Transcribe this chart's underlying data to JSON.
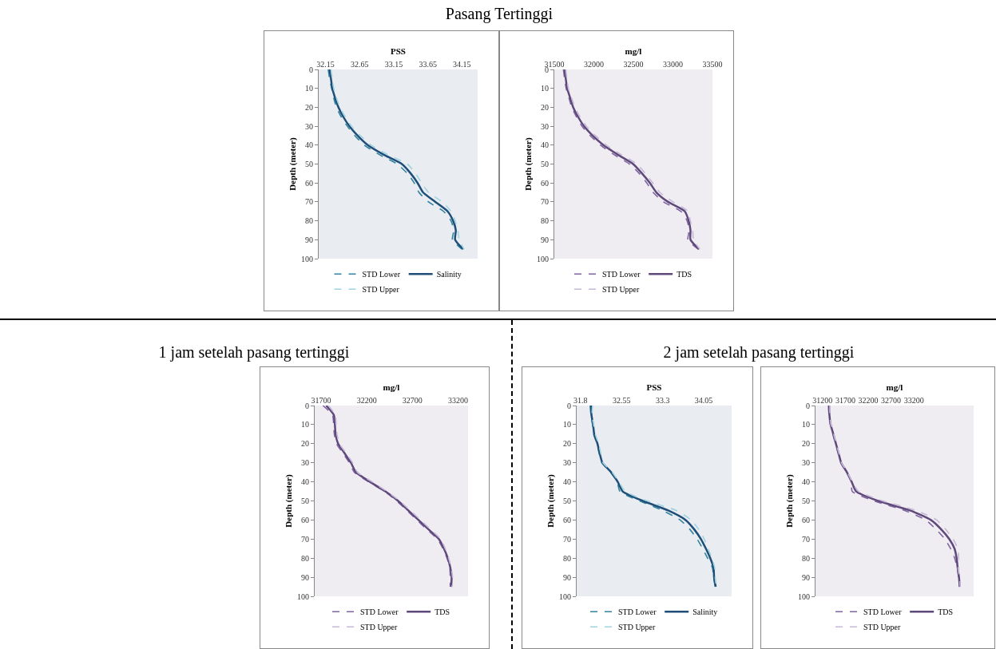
{
  "chart_data": [
    {
      "type": "line",
      "title": "Pasang Tertinggi",
      "xlabel": "PSS",
      "ylabel": "Depth (meter)",
      "xlim": [
        32.05,
        34.38
      ],
      "xticks": [
        32.15,
        32.65,
        33.15,
        33.65,
        34.15
      ],
      "ylim": [
        100,
        0
      ],
      "yticks": [
        0,
        10,
        20,
        30,
        40,
        50,
        60,
        70,
        80,
        90,
        100
      ],
      "grid": false,
      "legend": "bottom",
      "series": [
        {
          "name": "STD Lower",
          "color": "#31849b",
          "line_style": "dashed",
          "x": [
            32.19,
            32.21,
            32.24,
            32.27,
            32.31,
            32.38,
            32.47,
            32.58,
            32.72,
            32.94,
            33.2,
            33.35,
            33.45,
            33.52,
            33.66,
            33.88,
            33.99,
            34.03,
            34.01,
            34.15
          ],
          "values": [
            0,
            5,
            10,
            15,
            20,
            25,
            30,
            35,
            40,
            45,
            50,
            55,
            60,
            65,
            70,
            75,
            80,
            85,
            90,
            95
          ]
        },
        {
          "name": "Salinity",
          "color": "#1f4e79",
          "line_style": "solid",
          "x": [
            32.21,
            32.23,
            32.25,
            32.29,
            32.34,
            32.41,
            32.5,
            32.62,
            32.77,
            33.0,
            33.27,
            33.4,
            33.5,
            33.58,
            33.76,
            33.94,
            34.02,
            34.06,
            34.05,
            34.17
          ],
          "values": [
            0,
            5,
            10,
            15,
            20,
            25,
            30,
            35,
            40,
            45,
            50,
            55,
            60,
            65,
            70,
            75,
            80,
            85,
            90,
            95
          ]
        },
        {
          "name": "STD Upper",
          "color": "#9fd3e0",
          "line_style": "dashed",
          "x": [
            32.23,
            32.25,
            32.27,
            32.31,
            32.36,
            32.44,
            32.53,
            32.66,
            32.82,
            33.06,
            33.35,
            33.47,
            33.56,
            33.66,
            33.86,
            33.99,
            34.05,
            34.09,
            34.11,
            34.18
          ],
          "values": [
            0,
            5,
            10,
            15,
            20,
            25,
            30,
            35,
            40,
            45,
            50,
            55,
            60,
            65,
            70,
            75,
            80,
            85,
            90,
            95
          ]
        }
      ]
    },
    {
      "type": "line",
      "xlabel": "mg/l",
      "ylabel": "Depth (meter)",
      "xlim": [
        31500,
        33500
      ],
      "xticks": [
        31500,
        32000,
        32500,
        33000,
        33500
      ],
      "ylim": [
        100,
        0
      ],
      "yticks": [
        0,
        10,
        20,
        30,
        40,
        50,
        60,
        70,
        80,
        90,
        100
      ],
      "grid": false,
      "legend": "bottom",
      "series": [
        {
          "name": "STD Lower",
          "color": "#8064a2",
          "line_style": "dashed",
          "x": [
            31615,
            31630,
            31650,
            31685,
            31720,
            31780,
            31850,
            31955,
            32085,
            32255,
            32450,
            32575,
            32670,
            32750,
            32880,
            33100,
            33180,
            33205,
            33190,
            33320
          ],
          "values": [
            0,
            5,
            10,
            15,
            20,
            25,
            30,
            35,
            40,
            45,
            50,
            55,
            60,
            65,
            70,
            75,
            80,
            85,
            90,
            95
          ]
        },
        {
          "name": "TDS",
          "color": "#5f497a",
          "line_style": "solid",
          "x": [
            31630,
            31645,
            31663,
            31700,
            31739,
            31800,
            31876,
            31985,
            32121,
            32301,
            32497,
            32610,
            32709,
            32791,
            32938,
            33150,
            33199,
            33222,
            33222,
            33330
          ],
          "values": [
            0,
            5,
            10,
            15,
            20,
            25,
            30,
            35,
            40,
            45,
            50,
            55,
            60,
            65,
            70,
            75,
            80,
            85,
            90,
            95
          ]
        },
        {
          "name": "STD Upper",
          "color": "#c5b8d8",
          "line_style": "dashed",
          "x": [
            31645,
            31660,
            31678,
            31718,
            31760,
            31825,
            31905,
            32020,
            32160,
            32345,
            32545,
            32650,
            32745,
            32835,
            33000,
            33190,
            33220,
            33250,
            33260,
            33340
          ],
          "values": [
            0,
            5,
            10,
            15,
            20,
            25,
            30,
            35,
            40,
            45,
            50,
            55,
            60,
            65,
            70,
            75,
            80,
            85,
            90,
            95
          ]
        }
      ]
    },
    {
      "type": "line",
      "title": "1 jam setelah pasang tertinggi",
      "xlabel": "mg/l",
      "ylabel": "Depth (meter)",
      "xlim": [
        31630,
        33310
      ],
      "xticks": [
        31700,
        32200,
        32700,
        33200
      ],
      "ylim": [
        100,
        0
      ],
      "yticks": [
        0,
        10,
        20,
        30,
        40,
        50,
        60,
        70,
        80,
        90,
        100
      ],
      "grid": false,
      "legend": "bottom",
      "series": [
        {
          "name": "STD Lower",
          "color": "#8064a2",
          "line_style": "dashed",
          "x": [
            31720,
            31825,
            31838,
            31845,
            31870,
            31940,
            32010,
            32065,
            32220,
            32395,
            32530,
            32640,
            32750,
            32860,
            32975,
            33035,
            33080,
            33110,
            33115,
            33115
          ],
          "values": [
            0,
            5,
            10,
            15,
            20,
            25,
            30,
            35,
            40,
            45,
            50,
            55,
            60,
            65,
            70,
            75,
            80,
            85,
            90,
            95
          ]
        },
        {
          "name": "TDS",
          "color": "#5f497a",
          "line_style": "solid",
          "x": [
            31756,
            31840,
            31851,
            31859,
            31887,
            31957,
            32027,
            32083,
            32236,
            32404,
            32544,
            32655,
            32767,
            32879,
            32990,
            33046,
            33088,
            33116,
            33130,
            33125
          ],
          "values": [
            0,
            5,
            10,
            15,
            20,
            25,
            30,
            35,
            40,
            45,
            50,
            55,
            60,
            65,
            70,
            75,
            80,
            85,
            90,
            95
          ]
        },
        {
          "name": "STD Upper",
          "color": "#c5b8d8",
          "line_style": "dashed",
          "x": [
            31780,
            31855,
            31865,
            31875,
            31900,
            31975,
            32045,
            32100,
            32260,
            32420,
            32560,
            32675,
            32790,
            32900,
            33010,
            33060,
            33098,
            33125,
            33140,
            33135
          ],
          "values": [
            0,
            5,
            10,
            15,
            20,
            25,
            30,
            35,
            40,
            45,
            50,
            55,
            60,
            65,
            70,
            75,
            80,
            85,
            90,
            95
          ]
        }
      ]
    },
    {
      "type": "line",
      "title": "2 jam setelah pasang tertinggi",
      "xlabel": "PSS",
      "ylabel": "Depth (meter)",
      "xlim": [
        31.73,
        34.56
      ],
      "xticks": [
        31.8,
        32.55,
        33.3,
        34.05
      ],
      "ylim": [
        100,
        0
      ],
      "yticks": [
        0,
        10,
        20,
        30,
        40,
        50,
        60,
        70,
        80,
        90,
        100
      ],
      "grid": false,
      "legend": "bottom",
      "series": [
        {
          "name": "STD Lower",
          "color": "#31849b",
          "line_style": "dashed",
          "x": [
            31.98,
            31.99,
            32.02,
            32.04,
            32.1,
            32.14,
            32.19,
            32.35,
            32.47,
            32.52,
            32.88,
            33.3,
            33.62,
            33.8,
            33.93,
            34.03,
            34.12,
            34.21,
            34.23,
            34.26
          ],
          "values": [
            0,
            5,
            10,
            15,
            20,
            25,
            30,
            35,
            40,
            45,
            50,
            55,
            60,
            65,
            70,
            75,
            80,
            85,
            90,
            95
          ]
        },
        {
          "name": "Salinity",
          "color": "#1f4e79",
          "line_style": "solid",
          "x": [
            31.99,
            32.0,
            32.03,
            32.05,
            32.11,
            32.15,
            32.2,
            32.36,
            32.48,
            32.57,
            32.94,
            33.4,
            33.72,
            33.88,
            34.0,
            34.09,
            34.17,
            34.23,
            34.24,
            34.27
          ],
          "values": [
            0,
            5,
            10,
            15,
            20,
            25,
            30,
            35,
            40,
            45,
            50,
            55,
            60,
            65,
            70,
            75,
            80,
            85,
            90,
            95
          ]
        },
        {
          "name": "STD Upper",
          "color": "#9fd3e0",
          "line_style": "dashed",
          "x": [
            32.02,
            32.01,
            32.04,
            32.07,
            32.13,
            32.17,
            32.21,
            32.38,
            32.5,
            32.62,
            33.02,
            33.55,
            33.82,
            33.96,
            34.06,
            34.13,
            34.2,
            34.25,
            34.26,
            34.28
          ],
          "values": [
            0,
            5,
            10,
            15,
            20,
            25,
            30,
            35,
            40,
            45,
            50,
            55,
            60,
            65,
            70,
            75,
            80,
            85,
            90,
            95
          ]
        }
      ]
    },
    {
      "type": "line",
      "xlabel": "mg/l",
      "ylabel": "Depth (meter)",
      "xlim": [
        31045,
        34510
      ],
      "xticks": [
        31200,
        31700,
        32200,
        32700,
        33200
      ],
      "ylim": [
        100,
        0
      ],
      "yticks": [
        0,
        10,
        20,
        30,
        40,
        50,
        60,
        70,
        80,
        90,
        100
      ],
      "grid": false,
      "legend": "bottom",
      "series": [
        {
          "name": "STD Lower",
          "color": "#8064a2",
          "line_style": "dashed",
          "x": [
            31330,
            31340,
            31370,
            31425,
            31485,
            31540,
            31600,
            31725,
            31830,
            31850,
            32330,
            33000,
            33460,
            33690,
            33880,
            34005,
            34095,
            34150,
            34180,
            34200
          ],
          "values": [
            0,
            5,
            10,
            15,
            20,
            25,
            30,
            35,
            40,
            45,
            50,
            55,
            60,
            65,
            70,
            75,
            80,
            85,
            90,
            95
          ]
        },
        {
          "name": "TDS",
          "color": "#5f497a",
          "line_style": "solid",
          "x": [
            31344,
            31350,
            31378,
            31436,
            31493,
            31551,
            31608,
            31734,
            31838,
            31936,
            32424,
            33114,
            33574,
            33803,
            33976,
            34091,
            34137,
            34160,
            34189,
            34206
          ],
          "values": [
            0,
            5,
            10,
            15,
            20,
            25,
            30,
            35,
            40,
            45,
            50,
            55,
            60,
            65,
            70,
            75,
            80,
            85,
            90,
            95
          ]
        },
        {
          "name": "STD Upper",
          "color": "#c5b8d8",
          "line_style": "dashed",
          "x": [
            31360,
            31360,
            31385,
            31445,
            31500,
            31560,
            31615,
            31745,
            31850,
            31990,
            32520,
            33250,
            33700,
            33900,
            34060,
            34160,
            34180,
            34170,
            34200,
            34215
          ],
          "values": [
            0,
            5,
            10,
            15,
            20,
            25,
            30,
            35,
            40,
            45,
            50,
            55,
            60,
            65,
            70,
            75,
            80,
            85,
            90,
            95
          ]
        }
      ]
    }
  ]
}
